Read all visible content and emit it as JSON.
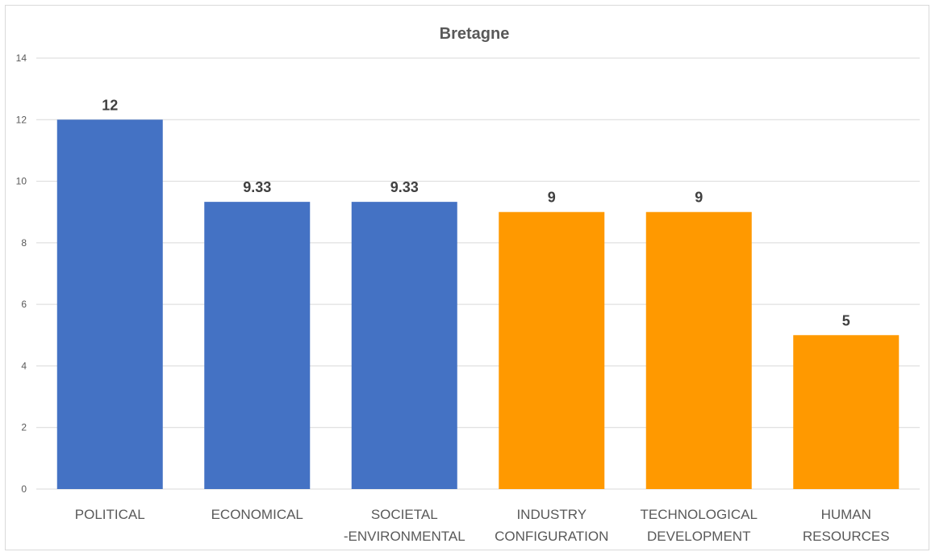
{
  "chart_data": {
    "type": "bar",
    "title": "Bretagne",
    "xlabel": "",
    "ylabel": "",
    "categories": [
      [
        "POLITICAL"
      ],
      [
        "ECONOMICAL"
      ],
      [
        "SOCIETAL",
        "-ENVIRONMENTAL"
      ],
      [
        "INDUSTRY",
        "CONFIGURATION"
      ],
      [
        "TECHNOLOGICAL",
        "DEVELOPMENT"
      ],
      [
        "HUMAN",
        "RESOURCES"
      ]
    ],
    "values": [
      12,
      9.33,
      9.33,
      9,
      9,
      5
    ],
    "data_labels": [
      "12",
      "9.33",
      "9.33",
      "9",
      "9",
      "5"
    ],
    "bar_colors": [
      "#4472C4",
      "#4472C4",
      "#4472C4",
      "#FF9900",
      "#FF9900",
      "#FF9900"
    ],
    "ylim": [
      0,
      14
    ],
    "yticks": [
      0,
      2,
      4,
      6,
      8,
      10,
      12,
      14
    ],
    "grid": true,
    "legend": "none"
  }
}
